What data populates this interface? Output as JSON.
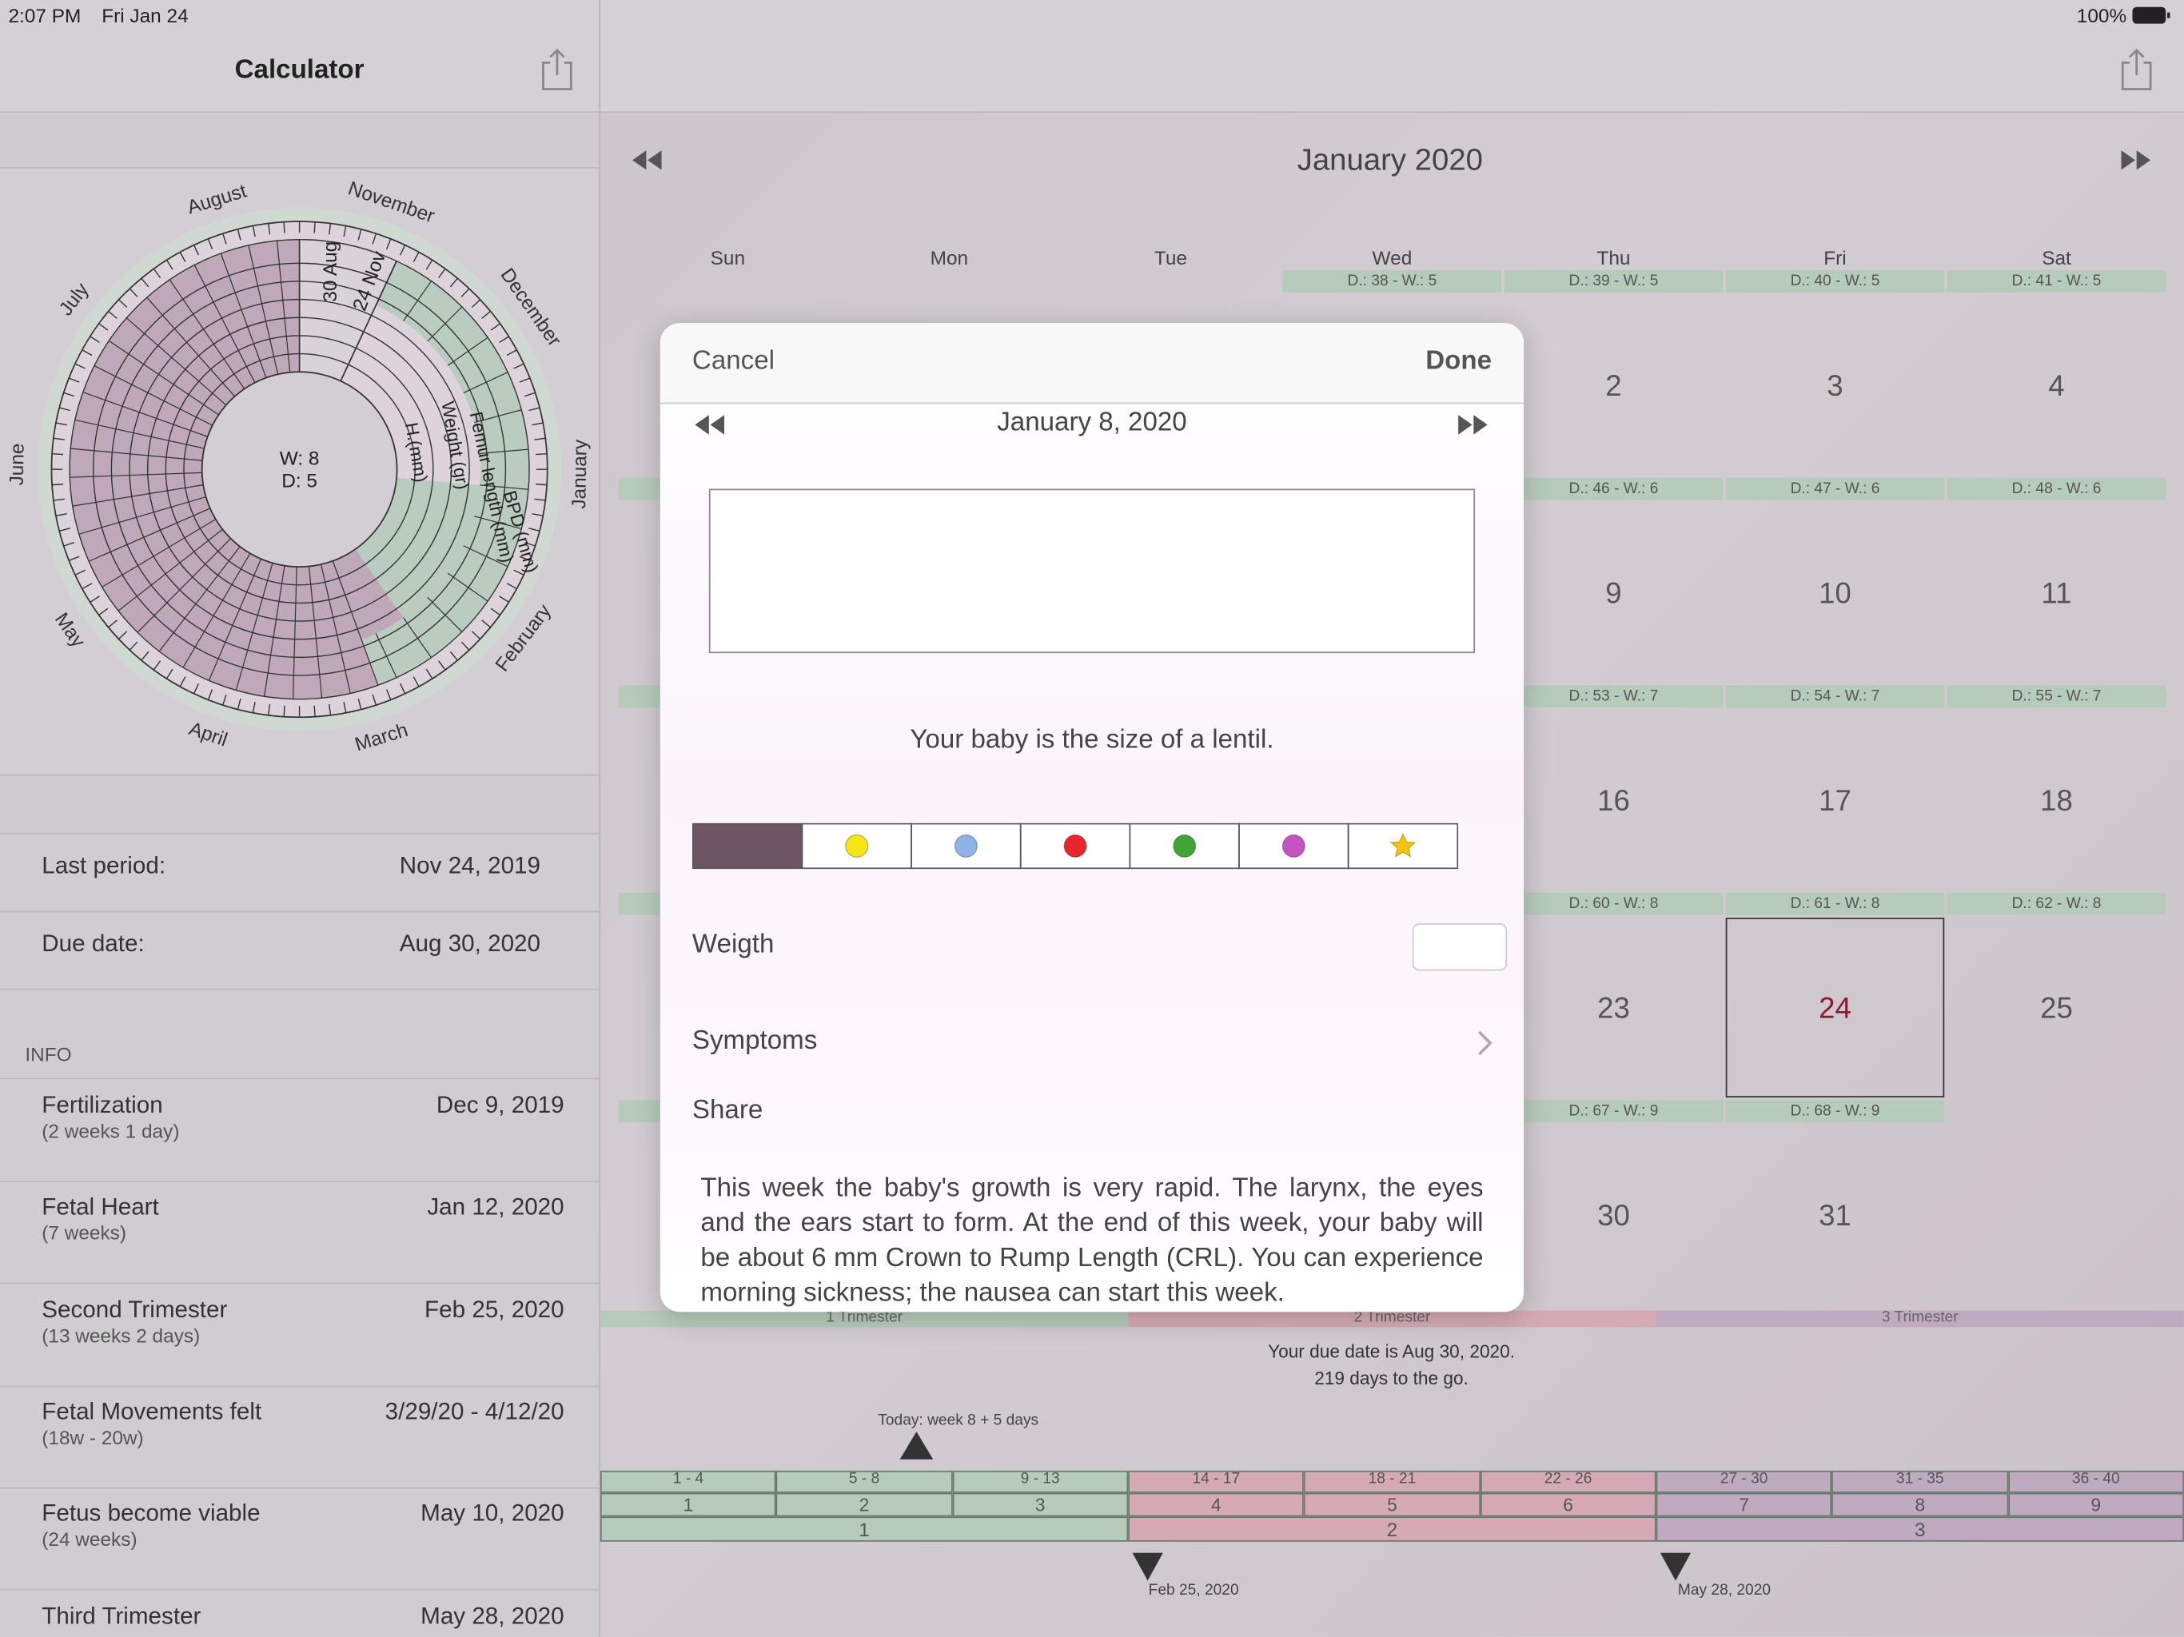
{
  "status_bar": {
    "time": "2:07 PM",
    "date": "Fri Jan 24",
    "battery": "100%"
  },
  "sidebar": {
    "title": "Calculator",
    "last_period": {
      "label": "Last period:",
      "value": "Nov 24, 2019"
    },
    "due_date": {
      "label": "Due date:",
      "value": "Aug 30, 2020"
    },
    "info_header": "INFO",
    "info": [
      {
        "title": "Fertilization",
        "subtitle": "(2 weeks 1 day)",
        "value": "Dec 9, 2019"
      },
      {
        "title": "Fetal Heart",
        "subtitle": "(7 weeks)",
        "value": "Jan 12, 2020"
      },
      {
        "title": "Second Trimester",
        "subtitle": "(13 weeks 2 days)",
        "value": "Feb 25, 2020"
      },
      {
        "title": "Fetal Movements felt",
        "subtitle": "(18w - 20w)",
        "value": "3/29/20 - 4/12/20"
      },
      {
        "title": "Fetus become viable",
        "subtitle": "(24 weeks)",
        "value": "May 10, 2020"
      },
      {
        "title": "Third Trimester",
        "subtitle": "",
        "value": "May 28, 2020"
      }
    ]
  },
  "wheel": {
    "months": [
      "August",
      "November",
      "December",
      "January",
      "February",
      "March",
      "April",
      "May",
      "June",
      "July"
    ],
    "center": [
      "W: 8",
      "D: 5"
    ],
    "ring_labels": [
      "30 Aug",
      "24 Nov"
    ],
    "column_headers": [
      "H.(mm)",
      "Weight (gr)",
      "Femur length (mm)",
      "BPD (mm)"
    ]
  },
  "calendar": {
    "title": "January 2020",
    "weekdays": [
      "Sun",
      "Mon",
      "Tue",
      "Wed",
      "Thu",
      "Fri",
      "Sat"
    ],
    "weeks": [
      [
        null,
        null,
        null,
        {
          "info": "D.: 38 - W.: 5"
        },
        {
          "day": 2,
          "info": "D.: 39 - W.: 5"
        },
        {
          "day": 3,
          "info": "D.: 40 - W.: 5"
        },
        {
          "day": 4,
          "info": "D.: 41 - W.: 5"
        }
      ],
      [
        null,
        null,
        null,
        null,
        {
          "day": 9,
          "info": "D.: 46 - W.: 6"
        },
        {
          "day": 10,
          "info": "D.: 47 - W.: 6"
        },
        {
          "day": 11,
          "info": "D.: 48 - W.: 6"
        }
      ],
      [
        null,
        null,
        null,
        null,
        {
          "day": 16,
          "info": "D.: 53 - W.: 7"
        },
        {
          "day": 17,
          "info": "D.: 54 - W.: 7"
        },
        {
          "day": 18,
          "info": "D.: 55 - W.: 7"
        }
      ],
      [
        null,
        null,
        null,
        null,
        {
          "day": 23,
          "info": "D.: 60 - W.: 8"
        },
        {
          "day": 24,
          "info": "D.: 61 - W.: 8"
        },
        {
          "day": 25,
          "info": "D.: 62 - W.: 8"
        }
      ],
      [
        null,
        null,
        null,
        null,
        {
          "day": 30,
          "info": "D.: 67 - W.: 9"
        },
        {
          "day": 31,
          "info": "D.: 68 - W.: 9"
        },
        null
      ]
    ]
  },
  "timeline": {
    "trimesters": [
      "1 Trimester",
      "2 Trimester",
      "3 Trimester"
    ],
    "due_text": [
      "Your due date is Aug 30, 2020.",
      "219 days to the go."
    ],
    "today": "Today: week 8 + 5 days",
    "ranges": [
      "1 - 4",
      "5 - 8",
      "9 - 13",
      "14 - 17",
      "18 - 21",
      "22 - 26",
      "27 - 30",
      "31 - 35",
      "36 - 40"
    ],
    "months": [
      1,
      2,
      3,
      4,
      5,
      6,
      7,
      8,
      9
    ],
    "trimester_numbers": [
      1,
      2,
      3
    ],
    "markers": [
      "Feb 25, 2020",
      "May 28, 2020"
    ]
  },
  "dialog": {
    "cancel": "Cancel",
    "done": "Done",
    "date": "January 8, 2020",
    "size_text": "Your baby is the size of a lentil.",
    "weight_label": "Weigth",
    "symptoms_label": "Symptoms",
    "share_label": "Share",
    "description": "This week the baby's growth is very rapid. The larynx, the eyes and the ears start to form. At the end of this week, your baby will be about 6 mm Crown to Rump Length (CRL). You can experience morning sickness; the nausea can start this week."
  }
}
